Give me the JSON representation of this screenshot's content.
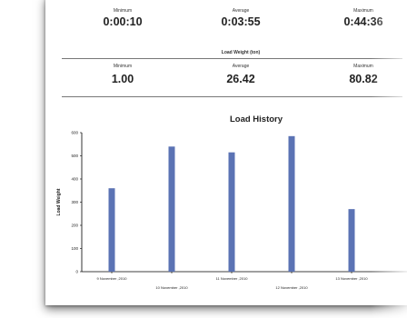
{
  "duration_stats": {
    "minimum_label": "Minimum",
    "minimum_value": "0:00:10",
    "average_label": "Average",
    "average_value": "0:03:55",
    "maximum_label": "Maximum",
    "maximum_value": "0:44:36"
  },
  "load_weight_section": {
    "title": "Load Weight (ton)",
    "minimum_label": "Minimum",
    "minimum_value": "1.00",
    "average_label": "Average",
    "average_value": "26.42",
    "maximum_label": "Maximum",
    "maximum_value": "80.82"
  },
  "chart_data": {
    "type": "bar",
    "title": "Load History",
    "xlabel": "",
    "ylabel": "Load Weight",
    "ylim": [
      0,
      600
    ],
    "yticks": [
      0,
      100,
      200,
      300,
      400,
      500,
      600
    ],
    "grid": false,
    "categories": [
      "9 November ,2010",
      "10 November ,2010",
      "11 November ,2010",
      "12 November ,2010",
      "13 November ,2010"
    ],
    "values": [
      360,
      540,
      515,
      585,
      270
    ],
    "colors": {
      "bar": "#5b73b4",
      "axis": "#000000",
      "text": "#222222"
    }
  }
}
